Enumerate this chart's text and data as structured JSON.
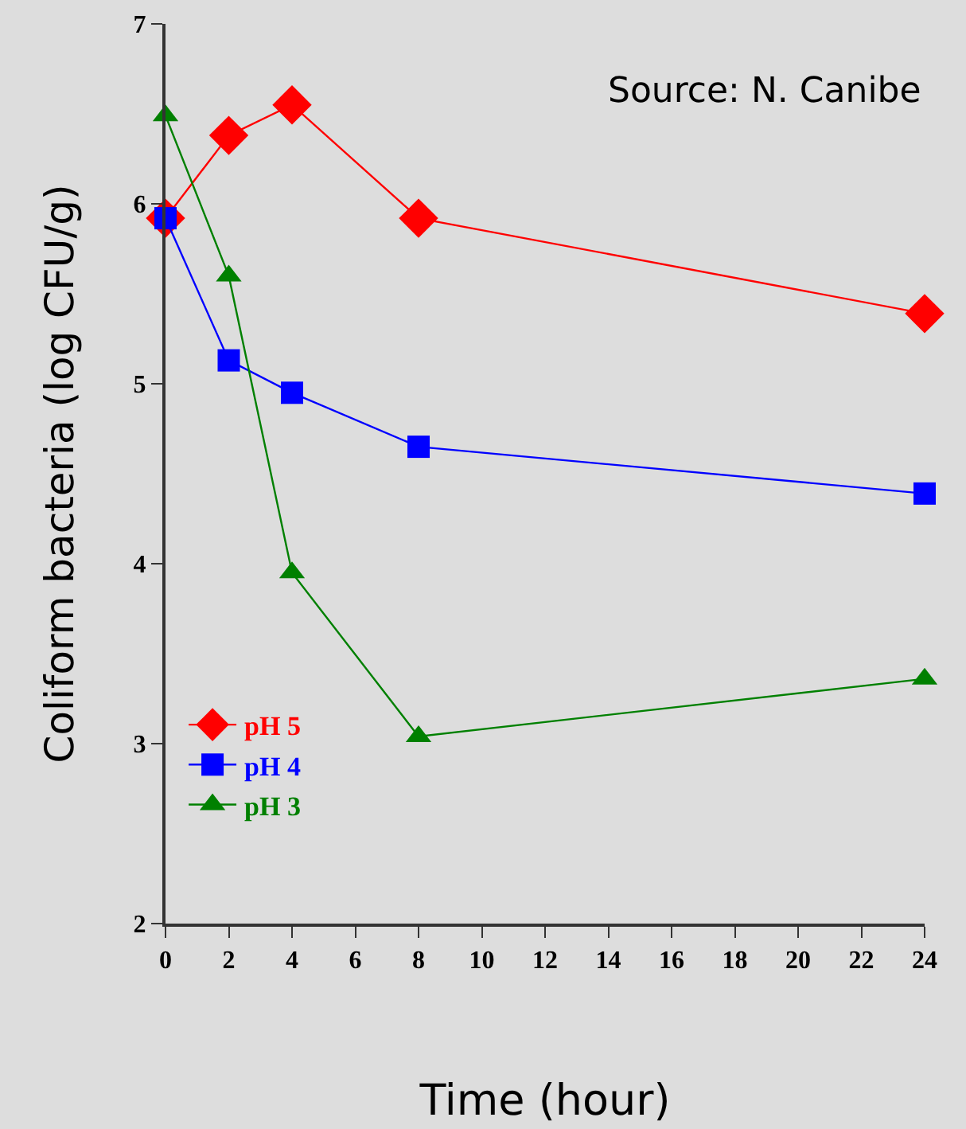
{
  "chart_data": {
    "type": "line",
    "xlabel": "Time (hour)",
    "ylabel": "Coliform bacteria (log CFU/g)",
    "annotations": [
      "Source: N. Canibe"
    ],
    "x": [
      0,
      2,
      4,
      8,
      24
    ],
    "series": [
      {
        "name": "pH 5",
        "color": "#ff0000",
        "marker": "diamond",
        "values": [
          5.92,
          6.38,
          6.55,
          5.92,
          5.39
        ]
      },
      {
        "name": "pH 4",
        "color": "#0000ff",
        "marker": "square",
        "values": [
          5.92,
          5.13,
          4.95,
          4.65,
          4.39
        ]
      },
      {
        "name": "pH 3",
        "color": "#008000",
        "marker": "triangle",
        "values": [
          6.49,
          5.6,
          3.95,
          3.04,
          3.36
        ]
      }
    ],
    "xlim": [
      0,
      24
    ],
    "xticks": [
      0,
      2,
      4,
      6,
      8,
      10,
      12,
      14,
      16,
      18,
      20,
      22,
      24
    ],
    "ylim": [
      2,
      7
    ],
    "yticks": [
      2,
      3,
      4,
      5,
      6,
      7
    ],
    "grid": false,
    "legend": "bottom left",
    "line_style": "solid"
  }
}
